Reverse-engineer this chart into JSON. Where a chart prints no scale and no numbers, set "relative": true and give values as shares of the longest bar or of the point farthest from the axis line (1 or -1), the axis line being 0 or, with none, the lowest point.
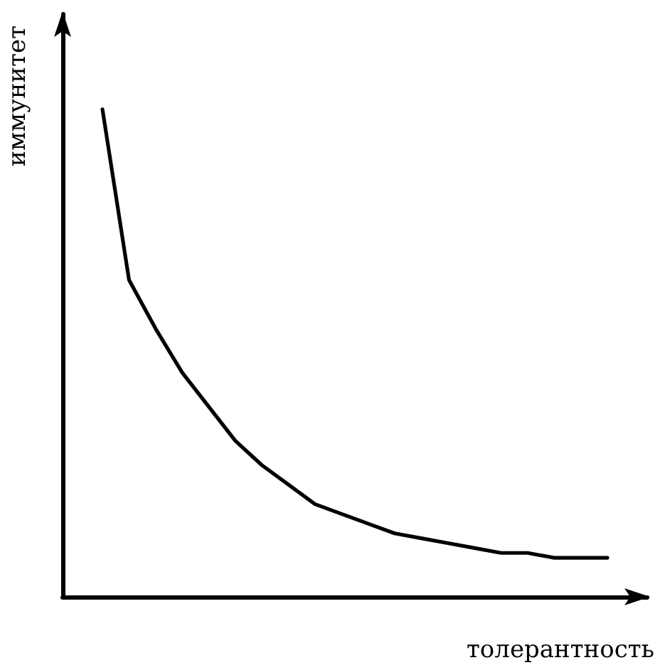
{
  "chart_data": {
    "type": "line",
    "relative": true,
    "xlabel": "толерантность",
    "ylabel": "иммунитет",
    "categories": [
      null,
      null,
      null,
      null,
      null,
      null,
      null,
      null,
      null,
      null,
      null,
      null,
      null,
      null,
      null,
      null,
      null,
      null,
      null,
      null,
      null,
      null
    ],
    "series": [
      {
        "color": "#000000",
        "values": [
          null,
          1,
          0.65,
          0.55,
          0.46,
          0.39,
          0.32,
          0.27,
          0.23,
          0.19,
          0.17,
          0.15,
          0.13,
          0.12,
          0.11,
          0.1,
          0.09,
          0.09,
          0.08,
          0.08,
          0.08,
          null
        ]
      }
    ],
    "grid": false,
    "marker": "none",
    "line_style": "solid"
  }
}
